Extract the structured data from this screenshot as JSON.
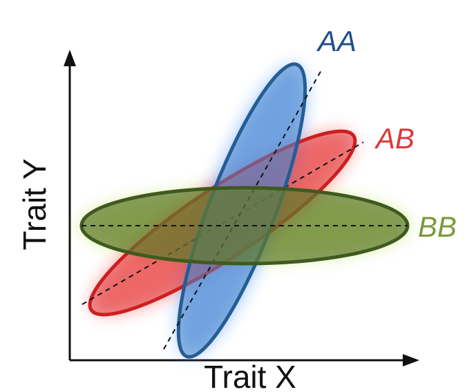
{
  "diagram": {
    "x_axis_label": "Trait X",
    "y_axis_label": "Trait Y",
    "genotypes": [
      {
        "id": "BB",
        "label": "BB",
        "color": "#7a9a3a",
        "fill": "#5f7a2e",
        "glow": "#b8e34a",
        "stroke": "#3f5a1e"
      },
      {
        "id": "AB",
        "label": "AB",
        "color": "#d83a3a",
        "fill": "#d82020",
        "glow": "#ff4a4a",
        "stroke": "#cc1f1f"
      },
      {
        "id": "AA",
        "label": "AA",
        "color": "#1f4f8a",
        "fill": "#4a86c8",
        "glow": "#4f95ff",
        "stroke": "#245d96"
      }
    ]
  }
}
